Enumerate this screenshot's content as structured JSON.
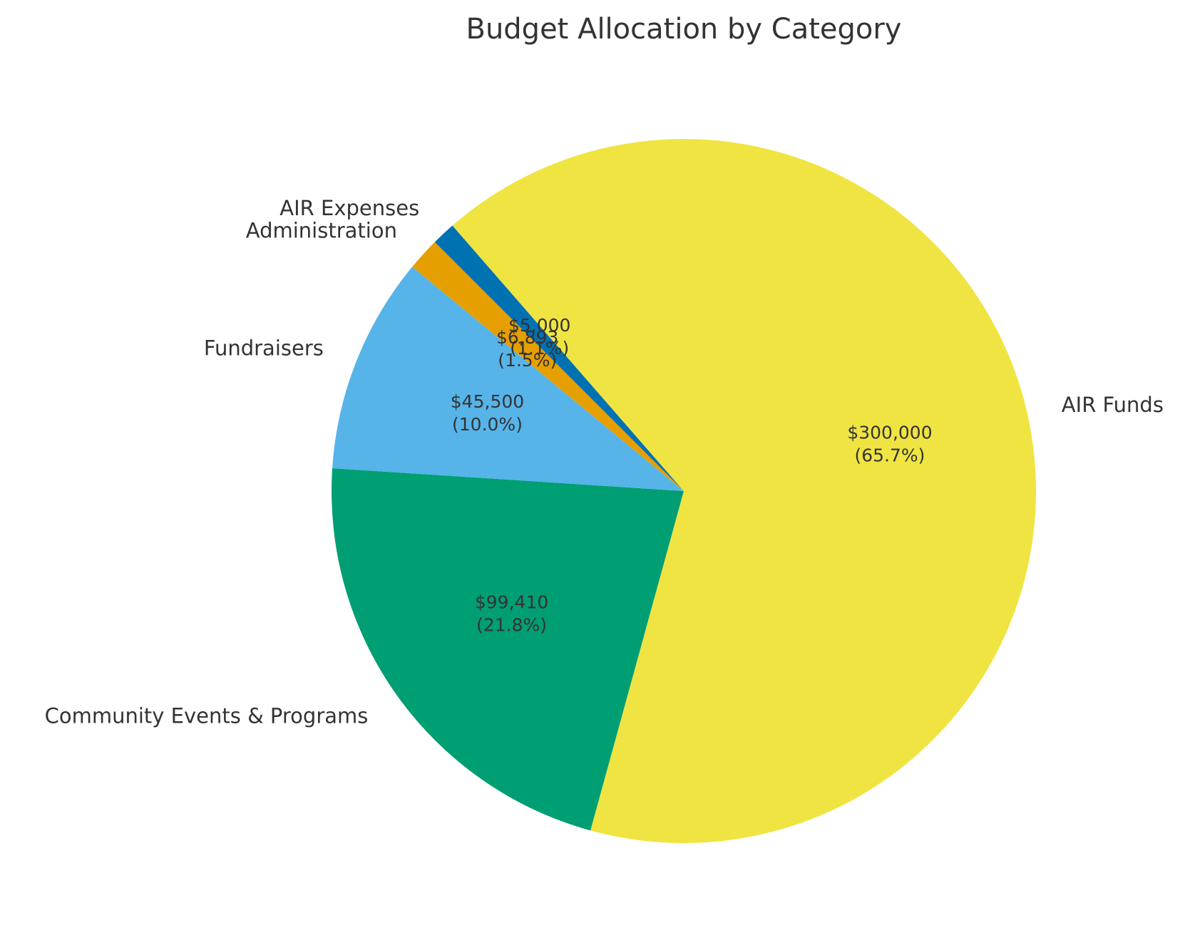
{
  "chart_data": {
    "type": "pie",
    "title": "Budget Allocation by Category",
    "start_angle_deg": 135,
    "direction": "clockwise",
    "slices": [
      {
        "label": "AIR Expenses",
        "value": 5000,
        "value_text": "$5,000",
        "pct_text": "(1.1%)",
        "color": "#0072B2"
      },
      {
        "label": "AIR Funds",
        "value": 300000,
        "value_text": "$300,000",
        "pct_text": "(65.7%)",
        "color": "#F0E442"
      },
      {
        "label": "Community Events & Programs",
        "value": 99410,
        "value_text": "$99,410",
        "pct_text": "(21.8%)",
        "color": "#009E73"
      },
      {
        "label": "Fundraisers",
        "value": 45500,
        "value_text": "$45,500",
        "pct_text": "(10.0%)",
        "color": "#56B4E9"
      },
      {
        "label": "Administration",
        "value": 6893,
        "value_text": "$6,893",
        "pct_text": "(1.5%)",
        "color": "#E69F00"
      }
    ]
  }
}
